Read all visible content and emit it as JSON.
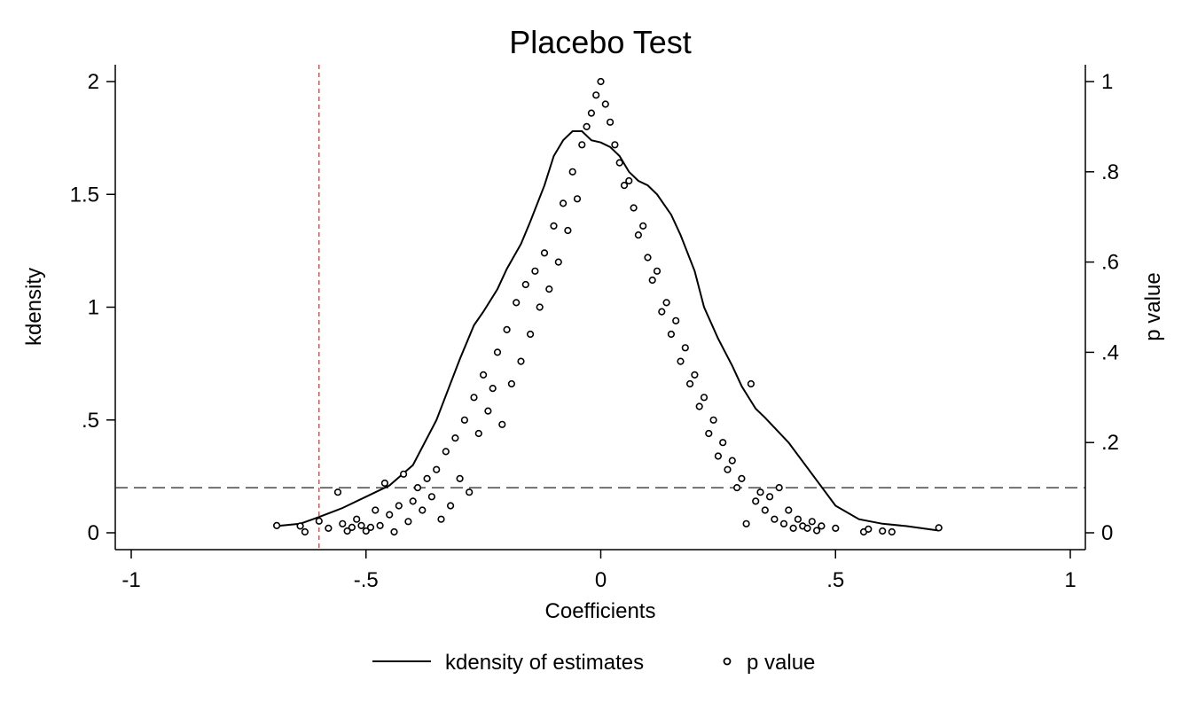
{
  "chart_data": {
    "type": "scatter",
    "title": "Placebo Test",
    "xlabel": "Coefficients",
    "ylabel_left": "kdensity",
    "ylabel_right": "p value",
    "xlim": [
      -1,
      1
    ],
    "ylim_left": [
      0,
      2
    ],
    "ylim_right": [
      0,
      1
    ],
    "x_ticks": [
      -1,
      -0.5,
      0,
      0.5,
      1
    ],
    "x_tick_labels": [
      "-1",
      "-.5",
      "0",
      ".5",
      "1"
    ],
    "y_left_ticks": [
      0,
      0.5,
      1,
      1.5,
      2
    ],
    "y_left_tick_labels": [
      "0",
      ".5",
      "1",
      "1.5",
      "2"
    ],
    "y_right_ticks": [
      0,
      0.2,
      0.4,
      0.6,
      0.8,
      1
    ],
    "y_right_tick_labels": [
      "0",
      ".2",
      ".4",
      ".6",
      ".8",
      "1"
    ],
    "grid": false,
    "legend_position": "bottom",
    "reference_lines": {
      "vertical_x": -0.6,
      "vertical_color": "#d62728",
      "horizontal_pvalue": 0.1
    },
    "series": [
      {
        "name": "kdensity of estimates",
        "style": "line",
        "axis": "left",
        "x": [
          -0.69,
          -0.64,
          -0.6,
          -0.55,
          -0.5,
          -0.45,
          -0.4,
          -0.35,
          -0.3,
          -0.27,
          -0.25,
          -0.22,
          -0.2,
          -0.17,
          -0.15,
          -0.12,
          -0.1,
          -0.08,
          -0.06,
          -0.04,
          -0.02,
          0,
          0.02,
          0.04,
          0.06,
          0.08,
          0.1,
          0.12,
          0.15,
          0.17,
          0.2,
          0.22,
          0.25,
          0.28,
          0.3,
          0.33,
          0.35,
          0.4,
          0.45,
          0.5,
          0.55,
          0.6,
          0.65,
          0.72
        ],
        "values": [
          0.03,
          0.04,
          0.07,
          0.11,
          0.16,
          0.21,
          0.3,
          0.5,
          0.77,
          0.92,
          0.98,
          1.08,
          1.17,
          1.28,
          1.38,
          1.54,
          1.67,
          1.74,
          1.78,
          1.78,
          1.74,
          1.73,
          1.71,
          1.67,
          1.6,
          1.56,
          1.54,
          1.5,
          1.41,
          1.32,
          1.16,
          1.0,
          0.86,
          0.74,
          0.65,
          0.55,
          0.51,
          0.4,
          0.26,
          0.12,
          0.06,
          0.04,
          0.03,
          0.01
        ]
      },
      {
        "name": "p value",
        "style": "hollow-circle",
        "axis": "right",
        "points": [
          [
            -0.69,
            0.016
          ],
          [
            -0.64,
            0.015
          ],
          [
            -0.63,
            0.002
          ],
          [
            -0.6,
            0.026
          ],
          [
            -0.58,
            0.01
          ],
          [
            -0.56,
            0.09
          ],
          [
            -0.55,
            0.02
          ],
          [
            -0.54,
            0.004
          ],
          [
            -0.53,
            0.012
          ],
          [
            -0.52,
            0.03
          ],
          [
            -0.51,
            0.016
          ],
          [
            -0.5,
            0.004
          ],
          [
            -0.49,
            0.012
          ],
          [
            -0.48,
            0.05
          ],
          [
            -0.47,
            0.016
          ],
          [
            -0.46,
            0.11
          ],
          [
            -0.45,
            0.04
          ],
          [
            -0.44,
            0.002
          ],
          [
            -0.43,
            0.06
          ],
          [
            -0.42,
            0.13
          ],
          [
            -0.41,
            0.025
          ],
          [
            -0.4,
            0.07
          ],
          [
            -0.39,
            0.1
          ],
          [
            -0.38,
            0.05
          ],
          [
            -0.37,
            0.12
          ],
          [
            -0.36,
            0.08
          ],
          [
            -0.35,
            0.14
          ],
          [
            -0.34,
            0.03
          ],
          [
            -0.33,
            0.18
          ],
          [
            -0.32,
            0.06
          ],
          [
            -0.31,
            0.21
          ],
          [
            -0.3,
            0.12
          ],
          [
            -0.29,
            0.25
          ],
          [
            -0.28,
            0.09
          ],
          [
            -0.27,
            0.3
          ],
          [
            -0.26,
            0.22
          ],
          [
            -0.25,
            0.35
          ],
          [
            -0.24,
            0.27
          ],
          [
            -0.23,
            0.32
          ],
          [
            -0.22,
            0.4
          ],
          [
            -0.21,
            0.24
          ],
          [
            -0.2,
            0.45
          ],
          [
            -0.19,
            0.33
          ],
          [
            -0.18,
            0.51
          ],
          [
            -0.17,
            0.38
          ],
          [
            -0.16,
            0.55
          ],
          [
            -0.15,
            0.44
          ],
          [
            -0.14,
            0.58
          ],
          [
            -0.13,
            0.5
          ],
          [
            -0.12,
            0.62
          ],
          [
            -0.11,
            0.54
          ],
          [
            -0.1,
            0.68
          ],
          [
            -0.09,
            0.6
          ],
          [
            -0.08,
            0.73
          ],
          [
            -0.07,
            0.67
          ],
          [
            -0.06,
            0.8
          ],
          [
            -0.05,
            0.74
          ],
          [
            -0.04,
            0.86
          ],
          [
            -0.03,
            0.9
          ],
          [
            -0.02,
            0.93
          ],
          [
            -0.01,
            0.97
          ],
          [
            0,
            1.0
          ],
          [
            0.01,
            0.95
          ],
          [
            0.02,
            0.91
          ],
          [
            0.03,
            0.86
          ],
          [
            0.04,
            0.82
          ],
          [
            0.05,
            0.77
          ],
          [
            0.06,
            0.78
          ],
          [
            0.07,
            0.72
          ],
          [
            0.08,
            0.66
          ],
          [
            0.09,
            0.68
          ],
          [
            0.1,
            0.61
          ],
          [
            0.11,
            0.56
          ],
          [
            0.12,
            0.58
          ],
          [
            0.13,
            0.49
          ],
          [
            0.14,
            0.51
          ],
          [
            0.15,
            0.44
          ],
          [
            0.16,
            0.47
          ],
          [
            0.17,
            0.38
          ],
          [
            0.18,
            0.41
          ],
          [
            0.19,
            0.33
          ],
          [
            0.2,
            0.35
          ],
          [
            0.21,
            0.28
          ],
          [
            0.22,
            0.3
          ],
          [
            0.23,
            0.22
          ],
          [
            0.24,
            0.25
          ],
          [
            0.25,
            0.17
          ],
          [
            0.26,
            0.2
          ],
          [
            0.27,
            0.14
          ],
          [
            0.28,
            0.16
          ],
          [
            0.29,
            0.1
          ],
          [
            0.3,
            0.12
          ],
          [
            0.31,
            0.02
          ],
          [
            0.32,
            0.33
          ],
          [
            0.33,
            0.07
          ],
          [
            0.34,
            0.09
          ],
          [
            0.35,
            0.05
          ],
          [
            0.36,
            0.08
          ],
          [
            0.37,
            0.03
          ],
          [
            0.38,
            0.1
          ],
          [
            0.39,
            0.02
          ],
          [
            0.4,
            0.05
          ],
          [
            0.41,
            0.01
          ],
          [
            0.42,
            0.03
          ],
          [
            0.43,
            0.015
          ],
          [
            0.44,
            0.01
          ],
          [
            0.45,
            0.025
          ],
          [
            0.46,
            0.005
          ],
          [
            0.47,
            0.015
          ],
          [
            0.5,
            0.01
          ],
          [
            0.56,
            0.002
          ],
          [
            0.57,
            0.008
          ],
          [
            0.6,
            0.004
          ],
          [
            0.62,
            0.002
          ],
          [
            0.72,
            0.011
          ]
        ]
      }
    ]
  }
}
